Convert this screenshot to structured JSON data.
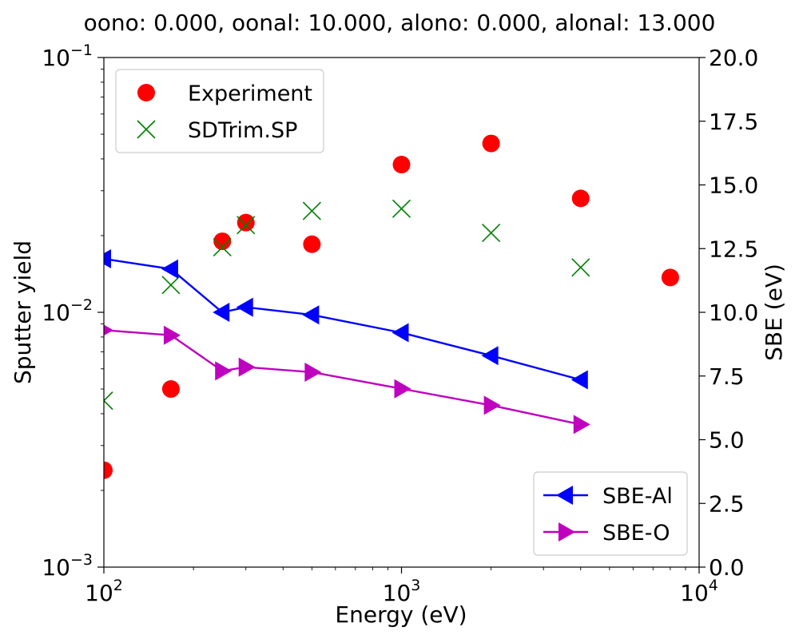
{
  "chart_data": {
    "type": "scatter",
    "title": "oono: 0.000, oonal: 10.000, alono: 0.000, alonal: 13.000",
    "xlabel": "Energy (eV)",
    "ylabel": "Sputter yield",
    "y2label": "SBE (eV)",
    "xscale": "log",
    "yscale": "log",
    "xlim": [
      100,
      10000
    ],
    "ylim": [
      0.001,
      0.1
    ],
    "y2lim": [
      0,
      20
    ],
    "x_ticks": [
      {
        "base": "10",
        "exp": "2",
        "value": 100
      },
      {
        "base": "10",
        "exp": "3",
        "value": 1000
      },
      {
        "base": "10",
        "exp": "4",
        "value": 10000
      }
    ],
    "y_ticks": [
      {
        "base": "10",
        "exp": "−3",
        "value": 0.001
      },
      {
        "base": "10",
        "exp": "−2",
        "value": 0.01
      },
      {
        "base": "10",
        "exp": "−1",
        "value": 0.1
      }
    ],
    "y2_ticks": [
      "0.0",
      "2.5",
      "5.0",
      "7.5",
      "10.0",
      "12.5",
      "15.0",
      "17.5",
      "20.0"
    ],
    "grid": false,
    "series": [
      {
        "name": "Experiment",
        "axis": "left",
        "marker": "circle",
        "color": "#ff0000",
        "legend_group": "left",
        "points": [
          [
            100,
            0.0024
          ],
          [
            168,
            0.005
          ],
          [
            250,
            0.019
          ],
          [
            300,
            0.0225
          ],
          [
            500,
            0.0185
          ],
          [
            1000,
            0.038
          ],
          [
            2000,
            0.046
          ],
          [
            4000,
            0.028
          ],
          [
            8000,
            0.0137
          ]
        ]
      },
      {
        "name": "SDTrim.SP",
        "axis": "left",
        "marker": "x",
        "color": "#008000",
        "legend_group": "left",
        "points": [
          [
            100,
            0.0045
          ],
          [
            168,
            0.0128
          ],
          [
            250,
            0.018
          ],
          [
            300,
            0.022
          ],
          [
            500,
            0.025
          ],
          [
            1000,
            0.0255
          ],
          [
            2000,
            0.0205
          ],
          [
            4000,
            0.015
          ]
        ]
      },
      {
        "name": "SBE-Al",
        "axis": "right",
        "marker": "triangle-left",
        "line": true,
        "color": "#0000ff",
        "legend_group": "right",
        "points": [
          [
            100,
            12.1
          ],
          [
            168,
            11.7
          ],
          [
            250,
            10.0
          ],
          [
            300,
            10.2
          ],
          [
            500,
            9.9
          ],
          [
            1000,
            9.2
          ],
          [
            2000,
            8.3
          ],
          [
            4000,
            7.35
          ]
        ]
      },
      {
        "name": "SBE-O",
        "axis": "right",
        "marker": "triangle-right",
        "line": true,
        "color": "#bf00bf",
        "legend_group": "right",
        "points": [
          [
            100,
            9.3
          ],
          [
            168,
            9.1
          ],
          [
            250,
            7.7
          ],
          [
            300,
            7.85
          ],
          [
            500,
            7.65
          ],
          [
            1000,
            7.0
          ],
          [
            2000,
            6.35
          ],
          [
            4000,
            5.6
          ]
        ]
      }
    ],
    "legends": [
      {
        "placement": "top-left",
        "series": [
          "Experiment",
          "SDTrim.SP"
        ]
      },
      {
        "placement": "bottom-right",
        "series": [
          "SBE-Al",
          "SBE-O"
        ]
      }
    ]
  }
}
